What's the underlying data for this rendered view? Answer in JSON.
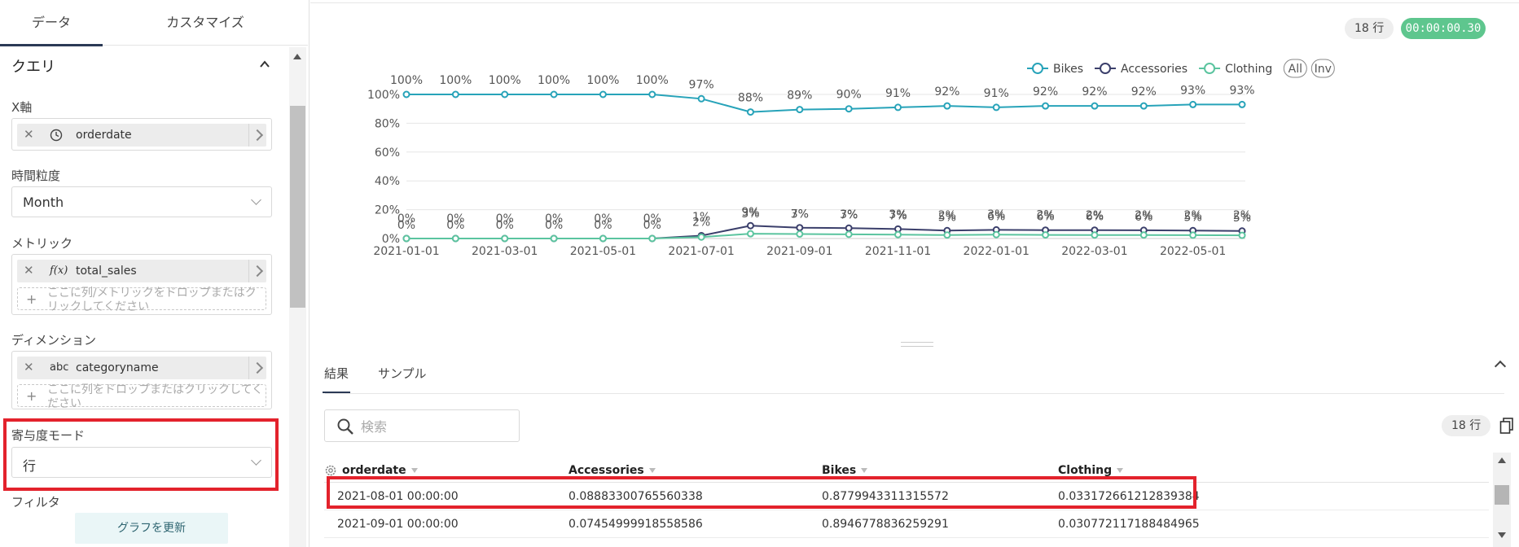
{
  "left_panel": {
    "tabs": [
      "データ",
      "カスタマイズ"
    ],
    "section_title": "クエリ",
    "x_axis": {
      "label": "X軸",
      "field": "orderdate",
      "icon": "clock-icon"
    },
    "time_grain": {
      "label": "時間粒度",
      "value": "Month"
    },
    "metric": {
      "label": "メトリック",
      "field": "total_sales",
      "icon_text": "f(x)",
      "drop_hint": "ここに列/メトリックをドロップまたはクリックしてください"
    },
    "dimension": {
      "label": "ディメンション",
      "field": "categoryname",
      "icon_text": "abc",
      "drop_hint": "ここに列をドロップまたはクリックしてください"
    },
    "contribution_mode": {
      "label": "寄与度モード",
      "value": "行"
    },
    "filter": {
      "label": "フィルタ"
    },
    "update_button": "グラフを更新"
  },
  "header": {
    "row_count": "18 行",
    "query_time": "00:00:00.30"
  },
  "legend": {
    "items": [
      {
        "name": "Bikes",
        "color": "#27a3b9"
      },
      {
        "name": "Accessories",
        "color": "#3b3f6b"
      },
      {
        "name": "Clothing",
        "color": "#5bc49f"
      }
    ],
    "all_label": "All",
    "inv_label": "Inv"
  },
  "chart_data": {
    "type": "line",
    "x": [
      "2021-01-01",
      "2021-02-01",
      "2021-03-01",
      "2021-04-01",
      "2021-05-01",
      "2021-06-01",
      "2021-07-01",
      "2021-08-01",
      "2021-09-01",
      "2021-10-01",
      "2021-11-01",
      "2021-12-01",
      "2022-01-01",
      "2022-02-01",
      "2022-03-01",
      "2022-04-01",
      "2022-05-01",
      "2022-06-01"
    ],
    "x_tick_labels": [
      "2021-01-01",
      "2021-03-01",
      "2021-05-01",
      "2021-07-01",
      "2021-09-01",
      "2021-11-01",
      "2022-01-01",
      "2022-03-01",
      "2022-05-01"
    ],
    "y_ticks": [
      "0%",
      "20%",
      "40%",
      "60%",
      "80%",
      "100%"
    ],
    "ylim": [
      0,
      1
    ],
    "grid": true,
    "legend_position": "top-right",
    "series": [
      {
        "name": "Bikes",
        "color": "#27a3b9",
        "values": [
          1,
          1,
          1,
          1,
          1,
          1,
          0.97,
          0.878,
          0.895,
          0.9,
          0.91,
          0.92,
          0.91,
          0.92,
          0.92,
          0.92,
          0.93,
          0.93
        ],
        "labels": [
          "100%",
          "100%",
          "100%",
          "100%",
          "100%",
          "100%",
          "97%",
          "88%",
          "89%",
          "90%",
          "91%",
          "92%",
          "91%",
          "92%",
          "92%",
          "92%",
          "93%",
          "93%"
        ]
      },
      {
        "name": "Accessories",
        "color": "#3b3f6b",
        "values": [
          0,
          0,
          0,
          0,
          0,
          0,
          0.02,
          0.089,
          0.075,
          0.072,
          0.066,
          0.055,
          0.06,
          0.058,
          0.058,
          0.057,
          0.055,
          0.052
        ],
        "labels": [
          "0%",
          "0%",
          "0%",
          "0%",
          "0%",
          "0%",
          "2%",
          "9%",
          "7%",
          "7%",
          "7%",
          "5%",
          "6%",
          "6%",
          "6%",
          "6%",
          "5%",
          "5%"
        ]
      },
      {
        "name": "Clothing",
        "color": "#5bc49f",
        "values": [
          0,
          0,
          0,
          0,
          0,
          0,
          0.01,
          0.033,
          0.031,
          0.029,
          0.027,
          0.024,
          0.027,
          0.025,
          0.024,
          0.024,
          0.023,
          0.022
        ],
        "labels": [
          "0%",
          "0%",
          "0%",
          "0%",
          "0%",
          "0%",
          "1%",
          "3%",
          "3%",
          "3%",
          "3%",
          "2%",
          "3%",
          "2%",
          "2%",
          "2%",
          "2%",
          "2%"
        ]
      }
    ]
  },
  "results": {
    "tabs": [
      "結果",
      "サンプル"
    ],
    "search_placeholder": "検索",
    "row_count": "18 行",
    "columns": [
      "orderdate",
      "Accessories",
      "Bikes",
      "Clothing"
    ],
    "rows": [
      [
        "2021-08-01 00:00:00",
        "0.08883300765560338",
        "0.8779943311315572",
        "0.033172661212839384"
      ],
      [
        "2021-09-01 00:00:00",
        "0.07454999918558586",
        "0.8946778836259291",
        "0.030772117188484965"
      ]
    ]
  }
}
